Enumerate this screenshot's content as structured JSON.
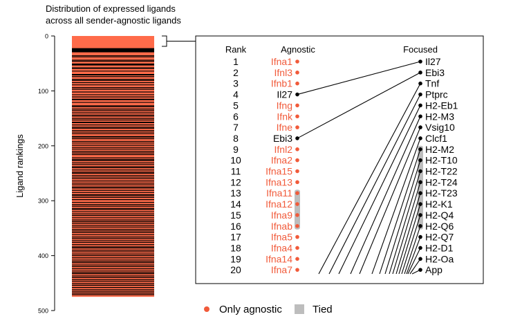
{
  "chart_data": {
    "type": "bump",
    "title": "Distribution of expressed ligands\nacross all sender-agnostic ligands",
    "left_panel": {
      "ylabel": "Ligand rankings",
      "ylim": [
        0,
        500
      ],
      "ticks": [
        0,
        100,
        200,
        300,
        400,
        500
      ],
      "bar_range": [
        0,
        475
      ],
      "bar_color": "#FF6B4A",
      "line_color": "#000000",
      "stripe_ranks": [
        23,
        24,
        25,
        26,
        27,
        28,
        29,
        36,
        38,
        44,
        46,
        51,
        52,
        53,
        58,
        59,
        64,
        70,
        71,
        74,
        79,
        81,
        85,
        89,
        94,
        97,
        102,
        107,
        111,
        115,
        116,
        121,
        127,
        129,
        133,
        136,
        140,
        144,
        146,
        150,
        153,
        157,
        158,
        162,
        166,
        168,
        172,
        175,
        178,
        183,
        184,
        187,
        192,
        195,
        199,
        203,
        206,
        210,
        213,
        216,
        222,
        225,
        227,
        231,
        234,
        238,
        240,
        244,
        248,
        250,
        254,
        257,
        260,
        264,
        268,
        271,
        275,
        277,
        281,
        285,
        289,
        291,
        294,
        298,
        303,
        307,
        310,
        314,
        316,
        320,
        324,
        327,
        331,
        335,
        338,
        341,
        345,
        348,
        352,
        355,
        358,
        362,
        366,
        369,
        373,
        376,
        380,
        384,
        386,
        390,
        393,
        397,
        400,
        404,
        408,
        411,
        413,
        417,
        420,
        424,
        428,
        431,
        433,
        437,
        440,
        444,
        447,
        451,
        454,
        458,
        462,
        465,
        468,
        471
      ]
    },
    "rank_header": "Rank",
    "agnostic_header": "Agnostic",
    "focused_header": "Focused",
    "ranks": [
      1,
      2,
      3,
      4,
      5,
      6,
      7,
      8,
      9,
      10,
      11,
      12,
      13,
      14,
      15,
      16,
      17,
      18,
      19,
      20
    ],
    "agnostic": [
      {
        "rank": 1,
        "name": "Ifna1",
        "only_agnostic": true
      },
      {
        "rank": 2,
        "name": "Ifnl3",
        "only_agnostic": true
      },
      {
        "rank": 3,
        "name": "Ifnb1",
        "only_agnostic": true
      },
      {
        "rank": 4,
        "name": "Il27",
        "only_agnostic": false
      },
      {
        "rank": 5,
        "name": "Ifng",
        "only_agnostic": true
      },
      {
        "rank": 6,
        "name": "Ifnk",
        "only_agnostic": true
      },
      {
        "rank": 7,
        "name": "Ifne",
        "only_agnostic": true
      },
      {
        "rank": 8,
        "name": "Ebi3",
        "only_agnostic": false
      },
      {
        "rank": 9,
        "name": "Ifnl2",
        "only_agnostic": true
      },
      {
        "rank": 10,
        "name": "Ifna2",
        "only_agnostic": true
      },
      {
        "rank": 11,
        "name": "Ifna15",
        "only_agnostic": true
      },
      {
        "rank": 12,
        "name": "Ifna13",
        "only_agnostic": true
      },
      {
        "rank": 13,
        "name": "Ifna11",
        "only_agnostic": true
      },
      {
        "rank": 14,
        "name": "Ifna12",
        "only_agnostic": true
      },
      {
        "rank": 15,
        "name": "Ifna9",
        "only_agnostic": true
      },
      {
        "rank": 16,
        "name": "Ifnab",
        "only_agnostic": true
      },
      {
        "rank": 17,
        "name": "Ifna5",
        "only_agnostic": true
      },
      {
        "rank": 18,
        "name": "Ifna4",
        "only_agnostic": true
      },
      {
        "rank": 19,
        "name": "Ifna14",
        "only_agnostic": true
      },
      {
        "rank": 20,
        "name": "Ifna7",
        "only_agnostic": true
      }
    ],
    "focused": [
      "Il27",
      "Ebi3",
      "Tnf",
      "Ptprc",
      "H2-Eb1",
      "H2-M3",
      "Vsig10",
      "Clcf1",
      "H2-M2",
      "H2-T10",
      "H2-T22",
      "H2-T24",
      "H2-T23",
      "H2-K1",
      "H2-Q4",
      "H2-Q6",
      "H2-Q7",
      "H2-D1",
      "H2-Oa",
      "App"
    ],
    "agnostic_tied_ranks": [
      13,
      16
    ],
    "focused_tied_ranks": [
      9,
      16
    ],
    "links": [
      {
        "focused_rank": 1,
        "agnostic_rank": 4
      },
      {
        "focused_rank": 2,
        "agnostic_rank": 8
      },
      {
        "focused_rank": 3,
        "agnostic_rank": 20.45
      },
      {
        "focused_rank": 4,
        "agnostic_rank": 20.45
      },
      {
        "focused_rank": 5,
        "agnostic_rank": 20.45
      },
      {
        "focused_rank": 6,
        "agnostic_rank": 20.45
      },
      {
        "focused_rank": 7,
        "agnostic_rank": 20.45
      },
      {
        "focused_rank": 8,
        "agnostic_rank": 20.45
      },
      {
        "focused_rank": 9,
        "agnostic_rank": 20.45
      },
      {
        "focused_rank": 10,
        "agnostic_rank": 20.45
      },
      {
        "focused_rank": 11,
        "agnostic_rank": 20.45
      },
      {
        "focused_rank": 12,
        "agnostic_rank": 20.45
      },
      {
        "focused_rank": 13,
        "agnostic_rank": 20.45
      },
      {
        "focused_rank": 14,
        "agnostic_rank": 20.45
      },
      {
        "focused_rank": 15,
        "agnostic_rank": 20.45
      },
      {
        "focused_rank": 16,
        "agnostic_rank": 20.45
      },
      {
        "focused_rank": 17,
        "agnostic_rank": 20.45
      },
      {
        "focused_rank": 18,
        "agnostic_rank": 20.45
      },
      {
        "focused_rank": 19,
        "agnostic_rank": 20.45
      },
      {
        "focused_rank": 20,
        "agnostic_rank": 20.45
      }
    ],
    "links_offscreen_agnostic_x": [
      461,
      476,
      490,
      507,
      520,
      538,
      549,
      557,
      563,
      568,
      573,
      577,
      581,
      585,
      588,
      590,
      593,
      596
    ],
    "colors": {
      "only_agnostic": "#F15A3A",
      "shared": "#000000",
      "tied": "#BDBDBD"
    },
    "legend": {
      "only_agnostic_label": "Only agnostic",
      "tied_label": "Tied",
      "position": "bottom"
    }
  }
}
